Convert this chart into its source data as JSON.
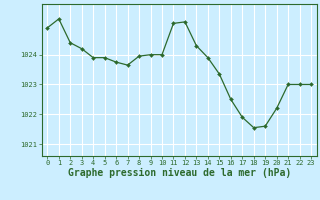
{
  "x": [
    0,
    1,
    2,
    3,
    4,
    5,
    6,
    7,
    8,
    9,
    10,
    11,
    12,
    13,
    14,
    15,
    16,
    17,
    18,
    19,
    20,
    21,
    22,
    23
  ],
  "y": [
    1024.9,
    1025.2,
    1024.4,
    1024.2,
    1023.9,
    1023.9,
    1023.75,
    1023.65,
    1023.95,
    1024.0,
    1024.0,
    1025.05,
    1025.1,
    1024.3,
    1023.9,
    1023.35,
    1022.5,
    1021.9,
    1021.55,
    1021.6,
    1022.2,
    1023.0,
    1023.0,
    1023.0
  ],
  "line_color": "#2d6a2d",
  "marker": "D",
  "marker_size": 2.0,
  "bg_color": "#cceeff",
  "grid_color": "#ffffff",
  "xlabel": "Graphe pression niveau de la mer (hPa)",
  "xlabel_fontsize": 7,
  "ylabel_ticks": [
    1021,
    1022,
    1023,
    1024
  ],
  "ylim": [
    1020.6,
    1025.7
  ],
  "xlim": [
    -0.5,
    23.5
  ],
  "xtick_labels": [
    "0",
    "1",
    "2",
    "3",
    "4",
    "5",
    "6",
    "7",
    "8",
    "9",
    "10",
    "11",
    "12",
    "13",
    "14",
    "15",
    "16",
    "17",
    "18",
    "19",
    "20",
    "21",
    "22",
    "23"
  ],
  "tick_fontsize": 5.0
}
